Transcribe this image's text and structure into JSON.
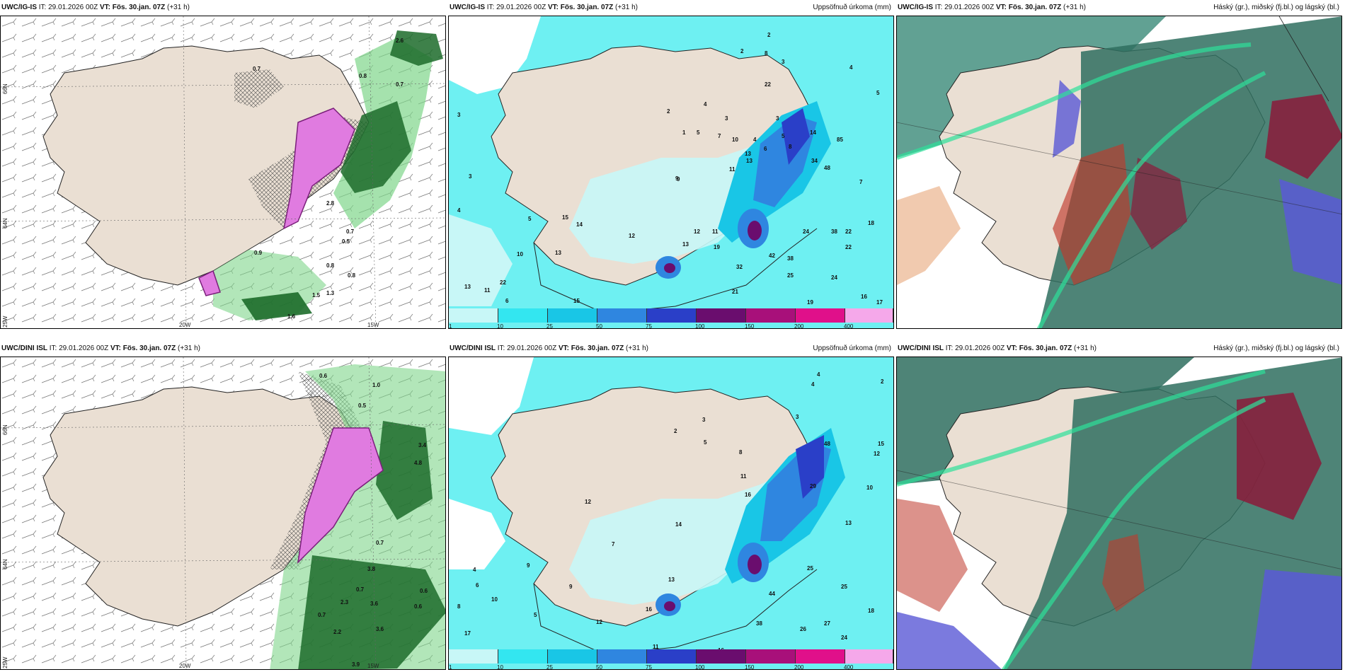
{
  "panels": {
    "p1": {
      "model": "UWC/IG-IS",
      "it_label": "IT:",
      "it": "29.01.2026 00Z",
      "vt_label": "VT: Fös. 30.jan. 07Z",
      "lead": "(+31 h)",
      "right": ""
    },
    "p2": {
      "model": "UWC/IG-IS",
      "it_label": "IT:",
      "it": "29.01.2026 00Z",
      "vt_label": "VT: Fös. 30.jan. 07Z",
      "lead": "(+31 h)",
      "right": "Uppsöfnuð úrkoma (mm)"
    },
    "p3": {
      "model": "UWC/IG-IS",
      "it_label": "IT:",
      "it": "29.01.2026 00Z",
      "vt_label": "VT: Fös. 30.jan. 07Z",
      "lead": "(+31 h)",
      "right": "Háský (gr.), miðský (fj.bl.) og lágský (bl.)"
    },
    "p4": {
      "model": "UWC/DINI ISL",
      "it_label": "IT:",
      "it": "29.01.2026 00Z",
      "vt_label": "VT: Fös. 30.jan. 07Z",
      "lead": "(+31 h)",
      "right": ""
    },
    "p5": {
      "model": "UWC/DINI ISL",
      "it_label": "IT:",
      "it": "29.01.2026 00Z",
      "vt_label": "VT: Fös. 30.jan. 07Z",
      "lead": "(+31 h)",
      "right": "Uppsöfnuð úrkoma (mm)"
    },
    "p6": {
      "model": "UWC/DINI ISL",
      "it_label": "IT:",
      "it": "29.01.2026 00Z",
      "vt_label": "VT: Fös. 30.jan. 07Z",
      "lead": "(+31 h)",
      "right": "Háský (gr.), miðský (fj.bl.) og lágský (bl.)"
    }
  },
  "axes": {
    "lon20": "20W",
    "lon15": "15W",
    "lat66": "66N",
    "lat64": "64N",
    "lon25": "25W"
  },
  "legend": {
    "labels": [
      "1",
      "10",
      "25",
      "50",
      "75",
      "100",
      "150",
      "200",
      "400"
    ],
    "colors": [
      "#c8f7f7",
      "#33e6f0",
      "#19c6e6",
      "#2f86e0",
      "#2a3fc8",
      "#6a0d6e",
      "#a8107a",
      "#e0108a",
      "#f5a8ea"
    ]
  },
  "precip_numbers_top": [
    "2",
    "2",
    "3",
    "8",
    "4",
    "5",
    "22",
    "4",
    "2",
    "3",
    "1",
    "5",
    "4",
    "3",
    "5",
    "7",
    "10",
    "13",
    "6",
    "8",
    "14",
    "34",
    "48",
    "85",
    "11",
    "12",
    "13",
    "15",
    "38",
    "13",
    "11",
    "7",
    "9",
    "14",
    "22",
    "24",
    "19",
    "22",
    "12",
    "13",
    "18",
    "32",
    "42",
    "38",
    "25",
    "21",
    "24",
    "16",
    "19",
    "17",
    "13",
    "11",
    "22",
    "6",
    "4",
    "3",
    "5",
    "3",
    "10",
    "9",
    "15"
  ],
  "precip_numbers_bottom": [
    "4",
    "4",
    "2",
    "3",
    "2",
    "3",
    "8",
    "5",
    "11",
    "16",
    "48",
    "12",
    "15",
    "29",
    "10",
    "13",
    "25",
    "44",
    "38",
    "26",
    "27",
    "25",
    "18",
    "24",
    "16",
    "11",
    "16",
    "13",
    "12",
    "5",
    "4",
    "6",
    "8",
    "17",
    "10",
    "9",
    "11",
    "14",
    "12",
    "9",
    "7"
  ],
  "wind_values_top": [
    "2.6",
    "0.7",
    "0.8",
    "0.7",
    "2.8",
    "0.7",
    "0.5",
    "0.9",
    "1.5",
    "1.3",
    "1.6",
    "0.8",
    "0.8"
  ],
  "wind_values_bottom": [
    "0.6",
    "1.0",
    "0.5",
    "3.4",
    "4.8",
    "0.7",
    "3.8",
    "0.7",
    "0.6",
    "2.3",
    "3.6",
    "0.6",
    "2.2",
    "0.7",
    "3.9",
    "3.6"
  ]
}
